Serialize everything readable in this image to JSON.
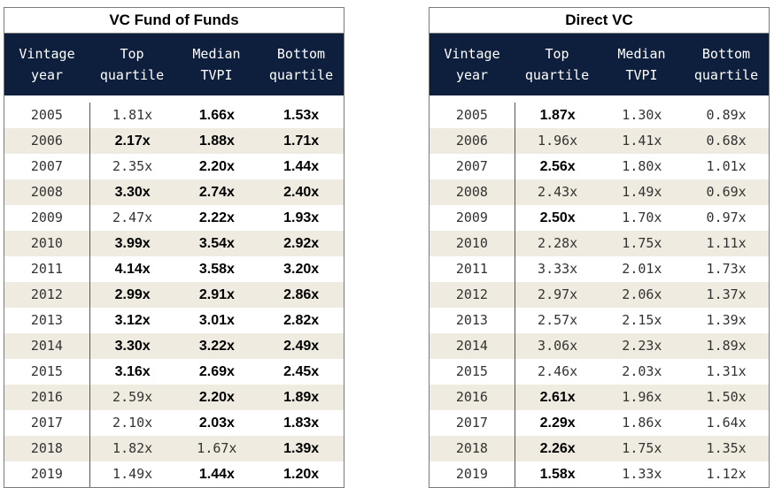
{
  "tables": [
    {
      "title": "VC Fund of Funds",
      "headers": [
        "Vintage\nyear",
        "Top\nquartile",
        "Median\nTVPI",
        "Bottom\nquartile"
      ],
      "rows": [
        {
          "cells": [
            "2005",
            "1.81x",
            "1.66x",
            "1.53x"
          ],
          "bold": [
            false,
            false,
            true,
            true
          ]
        },
        {
          "cells": [
            "2006",
            "2.17x",
            "1.88x",
            "1.71x"
          ],
          "bold": [
            false,
            true,
            true,
            true
          ]
        },
        {
          "cells": [
            "2007",
            "2.35x",
            "2.20x",
            "1.44x"
          ],
          "bold": [
            false,
            false,
            true,
            true
          ]
        },
        {
          "cells": [
            "2008",
            "3.30x",
            "2.74x",
            "2.40x"
          ],
          "bold": [
            false,
            true,
            true,
            true
          ]
        },
        {
          "cells": [
            "2009",
            "2.47x",
            "2.22x",
            "1.93x"
          ],
          "bold": [
            false,
            false,
            true,
            true
          ]
        },
        {
          "cells": [
            "2010",
            "3.99x",
            "3.54x",
            "2.92x"
          ],
          "bold": [
            false,
            true,
            true,
            true
          ]
        },
        {
          "cells": [
            "2011",
            "4.14x",
            "3.58x",
            "3.20x"
          ],
          "bold": [
            false,
            true,
            true,
            true
          ]
        },
        {
          "cells": [
            "2012",
            "2.99x",
            "2.91x",
            "2.86x"
          ],
          "bold": [
            false,
            true,
            true,
            true
          ]
        },
        {
          "cells": [
            "2013",
            "3.12x",
            "3.01x",
            "2.82x"
          ],
          "bold": [
            false,
            true,
            true,
            true
          ]
        },
        {
          "cells": [
            "2014",
            "3.30x",
            "3.22x",
            "2.49x"
          ],
          "bold": [
            false,
            true,
            true,
            true
          ]
        },
        {
          "cells": [
            "2015",
            "3.16x",
            "2.69x",
            "2.45x"
          ],
          "bold": [
            false,
            true,
            true,
            true
          ]
        },
        {
          "cells": [
            "2016",
            "2.59x",
            "2.20x",
            "1.89x"
          ],
          "bold": [
            false,
            false,
            true,
            true
          ]
        },
        {
          "cells": [
            "2017",
            "2.10x",
            "2.03x",
            "1.83x"
          ],
          "bold": [
            false,
            false,
            true,
            true
          ]
        },
        {
          "cells": [
            "2018",
            "1.82x",
            "1.67x",
            "1.39x"
          ],
          "bold": [
            false,
            false,
            false,
            true
          ]
        },
        {
          "cells": [
            "2019",
            "1.49x",
            "1.44x",
            "1.20x"
          ],
          "bold": [
            false,
            false,
            true,
            true
          ]
        }
      ]
    },
    {
      "title": "Direct VC",
      "headers": [
        "Vintage\nyear",
        "Top\nquartile",
        "Median\nTVPI",
        "Bottom\nquartile"
      ],
      "rows": [
        {
          "cells": [
            "2005",
            "1.87x",
            "1.30x",
            "0.89x"
          ],
          "bold": [
            false,
            true,
            false,
            false
          ]
        },
        {
          "cells": [
            "2006",
            "1.96x",
            "1.41x",
            "0.68x"
          ],
          "bold": [
            false,
            false,
            false,
            false
          ]
        },
        {
          "cells": [
            "2007",
            "2.56x",
            "1.80x",
            "1.01x"
          ],
          "bold": [
            false,
            true,
            false,
            false
          ]
        },
        {
          "cells": [
            "2008",
            "2.43x",
            "1.49x",
            "0.69x"
          ],
          "bold": [
            false,
            false,
            false,
            false
          ]
        },
        {
          "cells": [
            "2009",
            "2.50x",
            "1.70x",
            "0.97x"
          ],
          "bold": [
            false,
            true,
            false,
            false
          ]
        },
        {
          "cells": [
            "2010",
            "2.28x",
            "1.75x",
            "1.11x"
          ],
          "bold": [
            false,
            false,
            false,
            false
          ]
        },
        {
          "cells": [
            "2011",
            "3.33x",
            "2.01x",
            "1.73x"
          ],
          "bold": [
            false,
            false,
            false,
            false
          ]
        },
        {
          "cells": [
            "2012",
            "2.97x",
            "2.06x",
            "1.37x"
          ],
          "bold": [
            false,
            false,
            false,
            false
          ]
        },
        {
          "cells": [
            "2013",
            "2.57x",
            "2.15x",
            "1.39x"
          ],
          "bold": [
            false,
            false,
            false,
            false
          ]
        },
        {
          "cells": [
            "2014",
            "3.06x",
            "2.23x",
            "1.89x"
          ],
          "bold": [
            false,
            false,
            false,
            false
          ]
        },
        {
          "cells": [
            "2015",
            "2.46x",
            "2.03x",
            "1.31x"
          ],
          "bold": [
            false,
            false,
            false,
            false
          ]
        },
        {
          "cells": [
            "2016",
            "2.61x",
            "1.96x",
            "1.50x"
          ],
          "bold": [
            false,
            true,
            false,
            false
          ]
        },
        {
          "cells": [
            "2017",
            "2.29x",
            "1.86x",
            "1.64x"
          ],
          "bold": [
            false,
            true,
            false,
            false
          ]
        },
        {
          "cells": [
            "2018",
            "2.26x",
            "1.75x",
            "1.35x"
          ],
          "bold": [
            false,
            true,
            false,
            false
          ]
        },
        {
          "cells": [
            "2019",
            "1.58x",
            "1.33x",
            "1.12x"
          ],
          "bold": [
            false,
            true,
            false,
            false
          ]
        }
      ]
    }
  ],
  "colors": {
    "header_bg": "#0d1f3c",
    "header_text": "#ffffff",
    "shaded_row": "#f0ebe0",
    "border": "#7a7a7a"
  }
}
